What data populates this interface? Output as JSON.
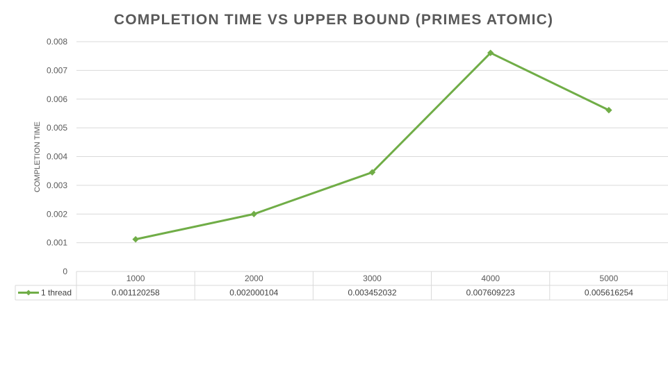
{
  "chart_data": {
    "type": "line",
    "title": "COMPLETION TIME VS UPPER BOUND (PRIMES ATOMIC)",
    "xlabel": "",
    "ylabel": "COMPLETION TIME",
    "categories": [
      "1000",
      "2000",
      "3000",
      "4000",
      "5000"
    ],
    "series": [
      {
        "name": "1 thread",
        "values": [
          0.001120258,
          0.002000104,
          0.003452032,
          0.007609223,
          0.005616254
        ],
        "labels": [
          "0.001120258",
          "0.002000104",
          "0.003452032",
          "0.007609223",
          "0.005616254"
        ],
        "color": "#70ad47",
        "marker": "diamond"
      }
    ],
    "ylim": [
      0,
      0.008
    ],
    "yticks": [
      "0",
      "0.001",
      "0.002",
      "0.003",
      "0.004",
      "0.005",
      "0.006",
      "0.007",
      "0.008"
    ],
    "grid": true,
    "legend": "data-table",
    "data_table": true
  }
}
